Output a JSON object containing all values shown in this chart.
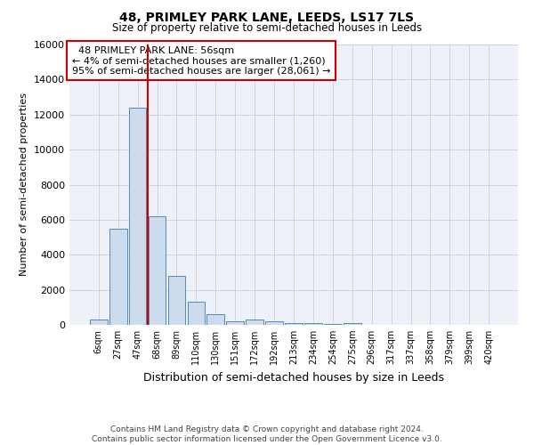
{
  "title": "48, PRIMLEY PARK LANE, LEEDS, LS17 7LS",
  "subtitle": "Size of property relative to semi-detached houses in Leeds",
  "xlabel": "Distribution of semi-detached houses by size in Leeds",
  "ylabel": "Number of semi-detached properties",
  "annotation_line1": "  48 PRIMLEY PARK LANE: 56sqm",
  "annotation_line2": "← 4% of semi-detached houses are smaller (1,260)",
  "annotation_line3": "95% of semi-detached houses are larger (28,061) →",
  "footer_line1": "Contains HM Land Registry data © Crown copyright and database right 2024.",
  "footer_line2": "Contains public sector information licensed under the Open Government Licence v3.0.",
  "x_labels": [
    "6sqm",
    "27sqm",
    "47sqm",
    "68sqm",
    "89sqm",
    "110sqm",
    "130sqm",
    "151sqm",
    "172sqm",
    "192sqm",
    "213sqm",
    "234sqm",
    "254sqm",
    "275sqm",
    "296sqm",
    "317sqm",
    "337sqm",
    "358sqm",
    "379sqm",
    "399sqm",
    "420sqm"
  ],
  "bar_values": [
    300,
    5500,
    12400,
    6200,
    2800,
    1300,
    600,
    200,
    300,
    200,
    100,
    100,
    50,
    100,
    0,
    0,
    0,
    0,
    0,
    0,
    0
  ],
  "bar_color": "#ccdcec",
  "bar_edge_color": "#5588bb",
  "vline_color": "#cc0000",
  "vline_x": 2.5,
  "ylim_max": 16000,
  "yticks": [
    0,
    2000,
    4000,
    6000,
    8000,
    10000,
    12000,
    14000,
    16000
  ],
  "annotation_box_color": "#cc0000",
  "grid_color": "#ccccdd",
  "plot_bg_color": "#eef2f8"
}
